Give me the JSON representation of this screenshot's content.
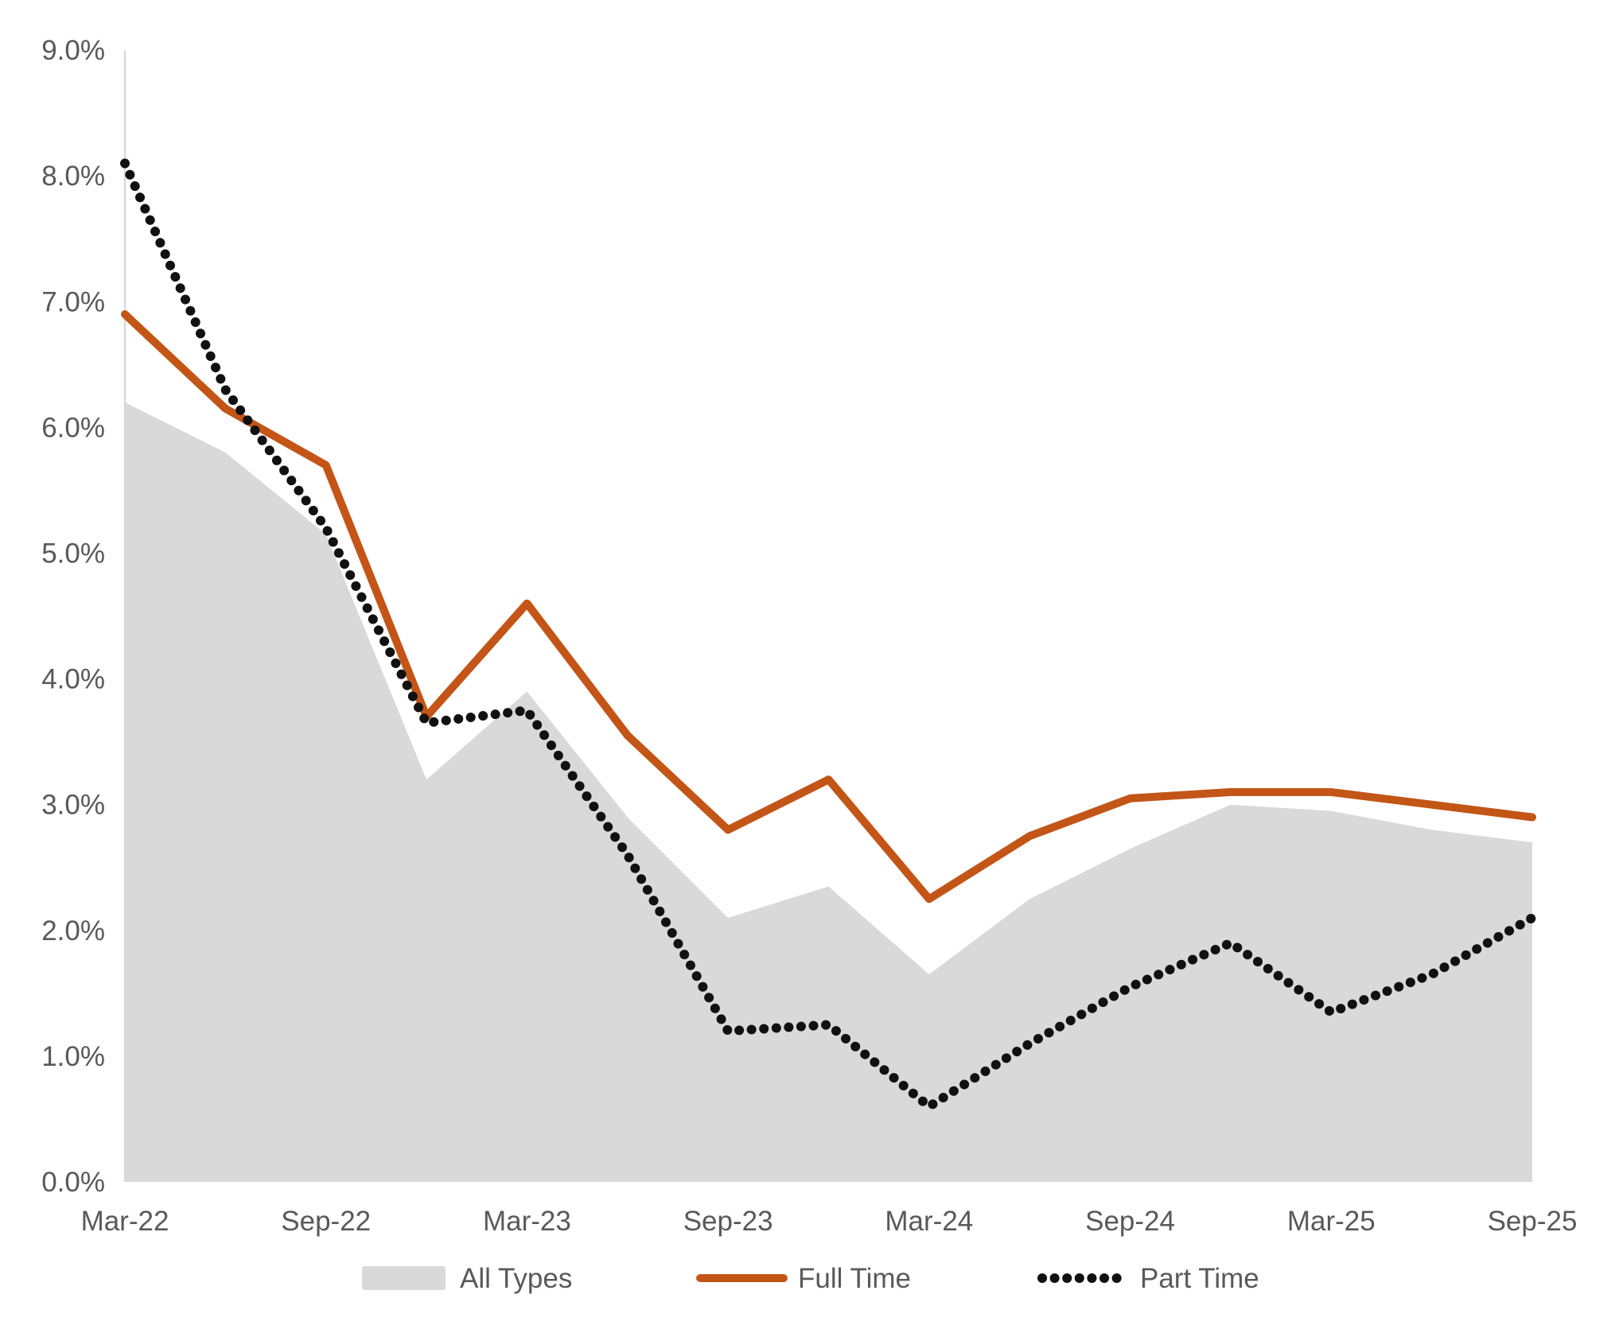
{
  "chart_data": {
    "type": "area+line",
    "title": "",
    "x": [
      "Mar-22",
      "Jun-22",
      "Sep-22",
      "Dec-22",
      "Mar-23",
      "Jun-23",
      "Sep-23",
      "Dec-23",
      "Mar-24",
      "Jun-24",
      "Sep-24",
      "Dec-24",
      "Mar-25",
      "Jun-25",
      "Sep-25"
    ],
    "x_ticks": [
      {
        "label": "Mar-22",
        "i": 0
      },
      {
        "label": "Sep-22",
        "i": 2
      },
      {
        "label": "Mar-23",
        "i": 4
      },
      {
        "label": "Sep-23",
        "i": 6
      },
      {
        "label": "Mar-24",
        "i": 8
      },
      {
        "label": "Sep-24",
        "i": 10
      },
      {
        "label": "Mar-25",
        "i": 12
      },
      {
        "label": "Sep-25",
        "i": 14
      }
    ],
    "y_ticks": [
      {
        "label": "0.0%",
        "value": 0
      },
      {
        "label": "1.0%",
        "value": 1
      },
      {
        "label": "2.0%",
        "value": 2
      },
      {
        "label": "3.0%",
        "value": 3
      },
      {
        "label": "4.0%",
        "value": 4
      },
      {
        "label": "5.0%",
        "value": 5
      },
      {
        "label": "6.0%",
        "value": 6
      },
      {
        "label": "7.0%",
        "value": 7
      },
      {
        "label": "8.0%",
        "value": 8
      },
      {
        "label": "9.0%",
        "value": 9
      }
    ],
    "ylim": [
      0,
      9
    ],
    "grid": "none",
    "legend_position": "bottom",
    "series": [
      {
        "name": "All Types",
        "style": "area",
        "color": "#d9d9d9",
        "values": [
          6.2,
          5.8,
          5.15,
          3.2,
          3.9,
          2.9,
          2.1,
          2.35,
          1.65,
          2.25,
          2.65,
          3.0,
          2.95,
          2.8,
          2.7
        ]
      },
      {
        "name": "Full Time",
        "style": "solid-line",
        "color": "#c35517",
        "values": [
          6.9,
          6.15,
          5.7,
          3.7,
          4.6,
          3.55,
          2.8,
          3.2,
          2.25,
          2.75,
          3.05,
          3.1,
          3.1,
          3.0,
          2.9
        ]
      },
      {
        "name": "Part Time",
        "style": "dotted-line",
        "color": "#111111",
        "values": [
          8.1,
          6.3,
          5.2,
          3.65,
          3.75,
          2.6,
          1.2,
          1.25,
          0.6,
          1.1,
          1.55,
          1.9,
          1.35,
          1.65,
          2.1
        ]
      }
    ]
  },
  "colors": {
    "axis_line": "#d9d9d9",
    "tick_label": "#595959",
    "legend_label": "#595959",
    "background": "#ffffff"
  }
}
